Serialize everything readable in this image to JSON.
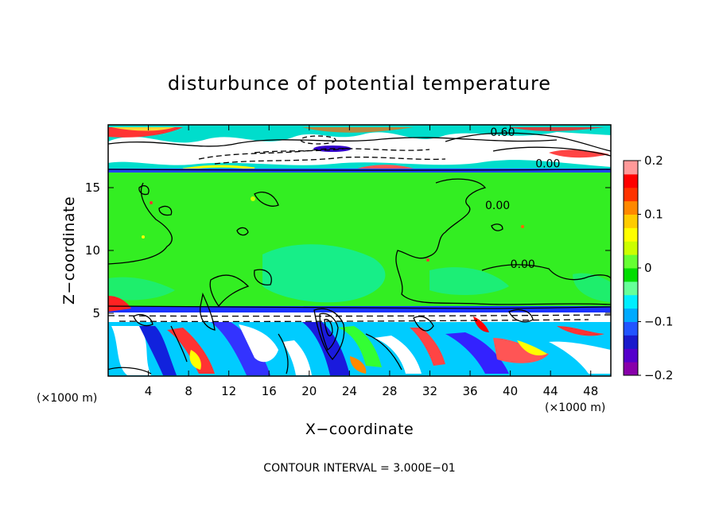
{
  "chart_data": {
    "type": "heatmap",
    "title": "disturbunce of potential temperature",
    "xlabel": "X−coordinate",
    "ylabel": "Z−coordinate",
    "x_unit": "(×1000 m)",
    "x_unit_right": "(×1000 m)",
    "xlim": [
      0,
      50
    ],
    "ylim": [
      0,
      20
    ],
    "x_ticks": [
      4,
      8,
      12,
      16,
      20,
      24,
      28,
      32,
      36,
      40,
      44,
      48
    ],
    "y_ticks": [
      5,
      10,
      15
    ],
    "colorbar": {
      "range": [
        -0.2,
        0.2
      ],
      "ticks": [
        0.2,
        0.1,
        0,
        -0.1,
        -0.2
      ],
      "tick_labels": [
        "0.2",
        "0.1",
        "0",
        "−0.1",
        "−0.2"
      ],
      "colors": [
        "#8800aa",
        "#5500cc",
        "#1a1acc",
        "#2255ff",
        "#00aaff",
        "#00eeff",
        "#66ff99",
        "#00dd00",
        "#66ff33",
        "#ccff00",
        "#ffff00",
        "#ffcc00",
        "#ff8800",
        "#ff3300",
        "#ff0000",
        "#ff9999"
      ]
    },
    "contour_labels": [
      {
        "text": "0.60",
        "x": 38.0,
        "z": 19.1
      },
      {
        "text": "0.00",
        "x": 42.5,
        "z": 16.6
      },
      {
        "text": "0.00",
        "x": 37.5,
        "z": 13.3
      },
      {
        "text": "0.00",
        "x": 40.0,
        "z": 8.6
      }
    ],
    "contour_interval_text": "CONTOUR INTERVAL = 3.000E−01",
    "grid": false,
    "legend": "colorbar-right"
  }
}
